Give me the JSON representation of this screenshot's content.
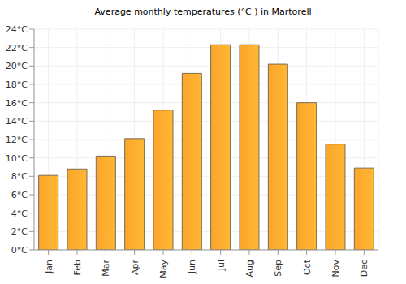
{
  "chart_data": {
    "type": "bar",
    "title": "Average monthly temperatures (°C ) in Martorell",
    "categories": [
      "Jan",
      "Feb",
      "Mar",
      "Apr",
      "May",
      "Jun",
      "Jul",
      "Aug",
      "Sep",
      "Oct",
      "Nov",
      "Dec"
    ],
    "values": [
      8.1,
      8.8,
      10.2,
      12.1,
      15.2,
      19.2,
      22.3,
      22.3,
      20.2,
      16.0,
      11.5,
      8.9
    ],
    "color": "#fba42b",
    "ylim": [
      0,
      24
    ],
    "yticks": [
      {
        "value": 0,
        "label": "0°C"
      },
      {
        "value": 2,
        "label": "2°C"
      },
      {
        "value": 4,
        "label": "4°C"
      },
      {
        "value": 6,
        "label": "6°C"
      },
      {
        "value": 8,
        "label": "8°C"
      },
      {
        "value": 10,
        "label": "10°C"
      },
      {
        "value": 12,
        "label": "12°C"
      },
      {
        "value": 14,
        "label": "14°C"
      },
      {
        "value": 16,
        "label": "16°C"
      },
      {
        "value": 18,
        "label": "18°C"
      },
      {
        "value": 20,
        "label": "20°C"
      },
      {
        "value": 22,
        "label": "22°C"
      },
      {
        "value": 24,
        "label": "24°C"
      }
    ],
    "grid": true
  }
}
